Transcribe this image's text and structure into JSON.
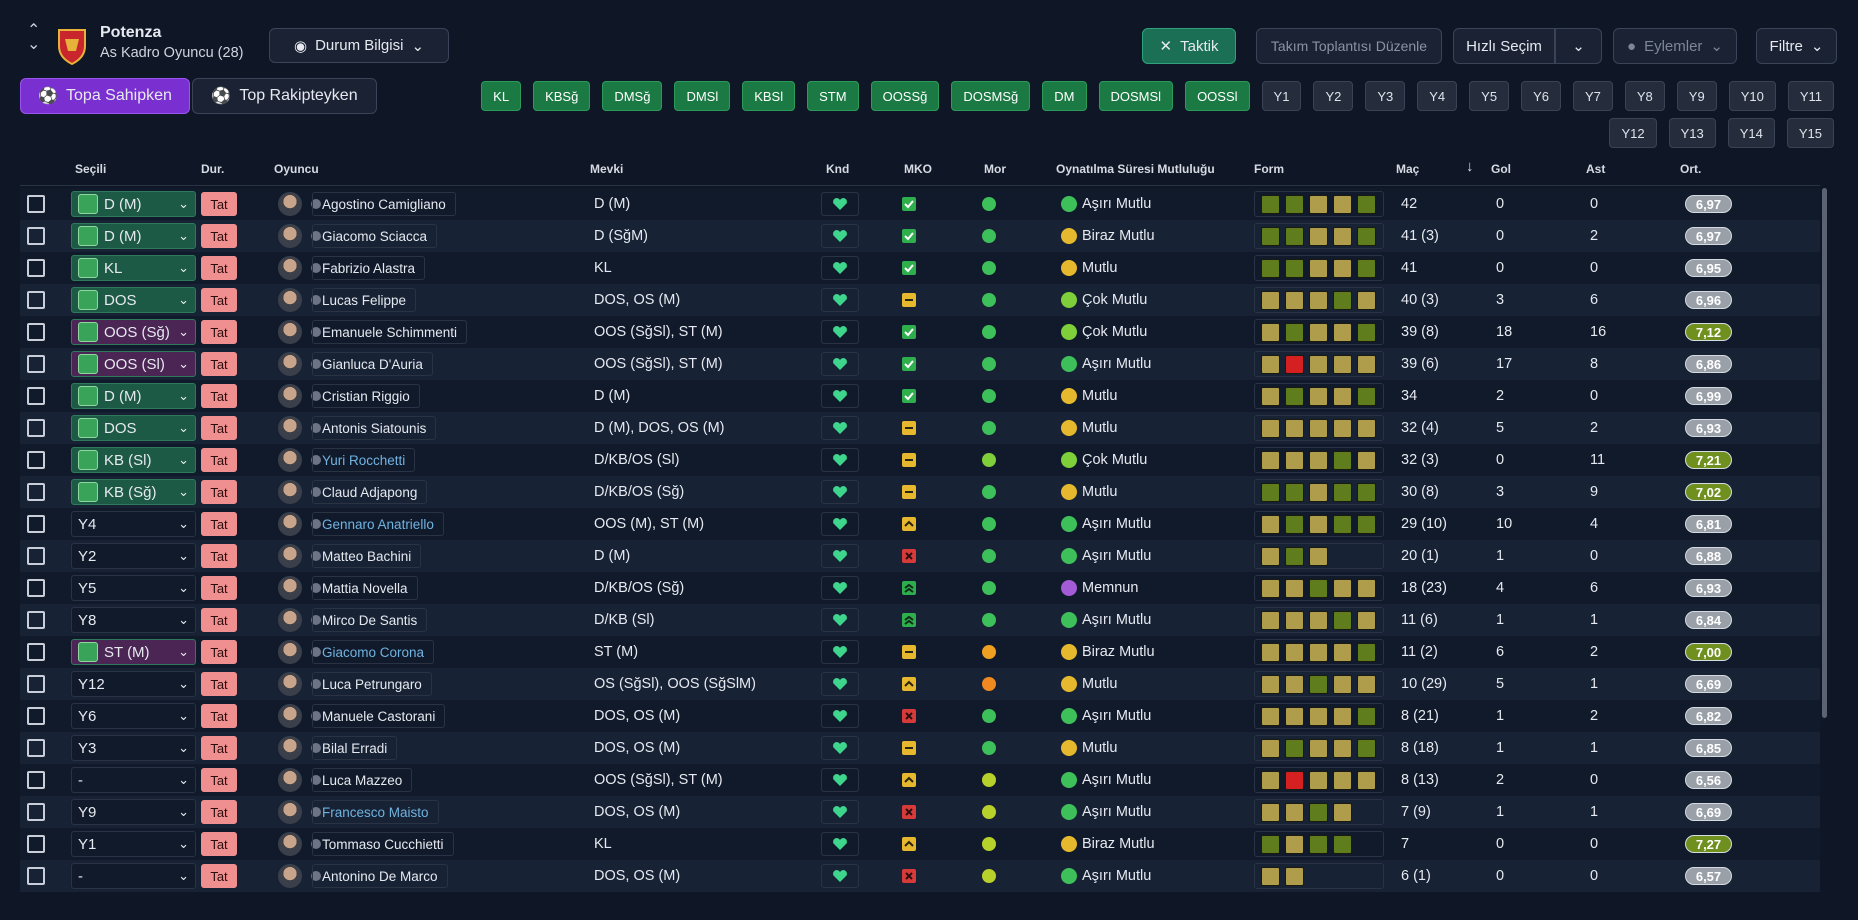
{
  "header": {
    "team": "Potenza",
    "subtitle": "As Kadro Oyuncu (28)",
    "status_button": "Durum Bilgisi",
    "buttons": [
      "Taktik",
      "Takım Toplantısı Düzenle",
      "Hızlı Seçim",
      "Eylemler",
      "Filtre"
    ]
  },
  "tabs": [
    "Topa Sahipken",
    "Top Rakipteyken"
  ],
  "chips": {
    "positions": [
      "KL",
      "KBSğ",
      "DMSğ",
      "DMSl",
      "KBSl",
      "STM",
      "OOSSğ",
      "DOSMSğ",
      "DM",
      "DOSMSl",
      "OOSSl"
    ],
    "slots": [
      "Y1",
      "Y2",
      "Y3",
      "Y4",
      "Y5",
      "Y6",
      "Y7",
      "Y8",
      "Y9",
      "Y10",
      "Y11",
      "Y12",
      "Y13",
      "Y14",
      "Y15"
    ]
  },
  "columns": [
    "Seçili",
    "Dur.",
    "Oyuncu",
    "Mevki",
    "Knd",
    "MKO",
    "Mor",
    "Oynatılma Süresi Mutluluğu",
    "Form",
    "Maç",
    "Gol",
    "Ast",
    "Ort."
  ],
  "rows": [
    {
      "sel": "D (M)",
      "sel_color": "#1d5a45",
      "status": "Tat",
      "name": "Agostino Camigliano",
      "pos": "D (M)",
      "mko": "check",
      "mor": "#3dbf5a",
      "mood": "Aşırı Mutlu",
      "mood_color": "#3dbf5a",
      "form": [
        "#5f7d1c",
        "#5f7d1c",
        "#b09d4c",
        "#b09d4c",
        "#5f7d1c"
      ],
      "apps": "42",
      "goals": 0,
      "assists": 0,
      "rating": "6,97",
      "rating_color": "#9aa0a8"
    },
    {
      "sel": "D (M)",
      "sel_color": "#1d5a45",
      "status": "Tat",
      "name": "Giacomo Sciacca",
      "pos": "D (SğM)",
      "mko": "check",
      "mor": "#3dbf5a",
      "mood": "Biraz Mutlu",
      "mood_color": "#e6b82e",
      "form": [
        "#5f7d1c",
        "#5f7d1c",
        "#b09d4c",
        "#b09d4c",
        "#5f7d1c"
      ],
      "apps": "41 (3)",
      "goals": 0,
      "assists": 2,
      "rating": "6,97",
      "rating_color": "#9aa0a8"
    },
    {
      "sel": "KL",
      "sel_color": "#1d5a45",
      "status": "Tat",
      "name": "Fabrizio Alastra",
      "pos": "KL",
      "mko": "check",
      "mor": "#3dbf5a",
      "mood": "Mutlu",
      "mood_color": "#e6b82e",
      "form": [
        "#5f7d1c",
        "#5f7d1c",
        "#b09d4c",
        "#b09d4c",
        "#5f7d1c"
      ],
      "apps": "41",
      "goals": 0,
      "assists": 0,
      "rating": "6,95",
      "rating_color": "#9aa0a8"
    },
    {
      "sel": "DOS",
      "sel_color": "#1d5a45",
      "status": "Tat",
      "name": "Lucas Felippe",
      "pos": "DOS, OS (M)",
      "mko": "dash",
      "mor": "#3dbf5a",
      "mood": "Çok Mutlu",
      "mood_color": "#7fcf3a",
      "form": [
        "#b09d4c",
        "#b09d4c",
        "#b09d4c",
        "#5f7d1c",
        "#b09d4c"
      ],
      "apps": "40 (3)",
      "goals": 3,
      "assists": 6,
      "rating": "6,96",
      "rating_color": "#9aa0a8"
    },
    {
      "sel": "OOS (Sğ)",
      "sel_color": "#4b2553",
      "status": "Tat",
      "name": "Emanuele Schimmenti",
      "pos": "OOS (SğSl), ST (M)",
      "mko": "check",
      "mor": "#3dbf5a",
      "mood": "Çok Mutlu",
      "mood_color": "#7fcf3a",
      "form": [
        "#b09d4c",
        "#5f7d1c",
        "#b09d4c",
        "#b09d4c",
        "#5f7d1c"
      ],
      "apps": "39 (8)",
      "goals": 18,
      "assists": 16,
      "rating": "7,12",
      "rating_color": "#6f8f1e"
    },
    {
      "sel": "OOS (Sl)",
      "sel_color": "#4b2553",
      "status": "Tat",
      "name": "Gianluca D'Auria",
      "pos": "OOS (SğSl), ST (M)",
      "mko": "check",
      "mor": "#3dbf5a",
      "mood": "Aşırı Mutlu",
      "mood_color": "#3dbf5a",
      "form": [
        "#b09d4c",
        "#d42020",
        "#b09d4c",
        "#b09d4c",
        "#b09d4c"
      ],
      "apps": "39 (6)",
      "goals": 17,
      "assists": 8,
      "rating": "6,86",
      "rating_color": "#9aa0a8"
    },
    {
      "sel": "D (M)",
      "sel_color": "#1d5a45",
      "status": "Tat",
      "name": "Cristian Riggio",
      "pos": "D (M)",
      "mko": "check",
      "mor": "#3dbf5a",
      "mood": "Mutlu",
      "mood_color": "#e6b82e",
      "form": [
        "#b09d4c",
        "#5f7d1c",
        "#b09d4c",
        "#b09d4c",
        "#5f7d1c"
      ],
      "apps": "34",
      "goals": 2,
      "assists": 0,
      "rating": "6,99",
      "rating_color": "#9aa0a8"
    },
    {
      "sel": "DOS",
      "sel_color": "#1d5a45",
      "status": "Tat",
      "name": "Antonis Siatounis",
      "pos": "D (M), DOS, OS (M)",
      "mko": "dash",
      "mor": "#3dbf5a",
      "mood": "Mutlu",
      "mood_color": "#e6b82e",
      "form": [
        "#b09d4c",
        "#b09d4c",
        "#b09d4c",
        "#b09d4c",
        "#b09d4c"
      ],
      "apps": "32 (4)",
      "goals": 5,
      "assists": 2,
      "rating": "6,93",
      "rating_color": "#9aa0a8"
    },
    {
      "sel": "KB (Sl)",
      "sel_color": "#1d5a45",
      "status": "Tat",
      "name": "Yuri Rocchetti",
      "name_color": "#6fb3e0",
      "pos": "D/KB/OS (Sl)",
      "mko": "dash",
      "mor": "#7fcf3a",
      "mood": "Çok Mutlu",
      "mood_color": "#7fcf3a",
      "form": [
        "#b09d4c",
        "#b09d4c",
        "#b09d4c",
        "#5f7d1c",
        "#b09d4c"
      ],
      "apps": "32 (3)",
      "goals": 0,
      "assists": 11,
      "rating": "7,21",
      "rating_color": "#6f8f1e"
    },
    {
      "sel": "KB (Sğ)",
      "sel_color": "#1d5a45",
      "status": "Tat",
      "name": "Claud Adjapong",
      "pos": "D/KB/OS (Sğ)",
      "mko": "dash",
      "mor": "#3dbf5a",
      "mood": "Mutlu",
      "mood_color": "#e6b82e",
      "form": [
        "#5f7d1c",
        "#5f7d1c",
        "#b09d4c",
        "#5f7d1c",
        "#5f7d1c"
      ],
      "apps": "30 (8)",
      "goals": 3,
      "assists": 9,
      "rating": "7,02",
      "rating_color": "#6f8f1e"
    },
    {
      "sel": "Y4",
      "status": "Tat",
      "name": "Gennaro Anatriello",
      "name_color": "#6fb3e0",
      "pos": "OOS (M), ST (M)",
      "mko": "up",
      "mor": "#3dbf5a",
      "mood": "Aşırı Mutlu",
      "mood_color": "#3dbf5a",
      "form": [
        "#b09d4c",
        "#5f7d1c",
        "#b09d4c",
        "#5f7d1c",
        "#5f7d1c"
      ],
      "apps": "29 (10)",
      "goals": 10,
      "assists": 4,
      "rating": "6,81",
      "rating_color": "#9aa0a8"
    },
    {
      "sel": "Y2",
      "status": "Tat",
      "name": "Matteo Bachini",
      "pos": "D (M)",
      "mko": "x",
      "mor": "#3dbf5a",
      "mood": "Aşırı Mutlu",
      "mood_color": "#3dbf5a",
      "form": [
        "#b09d4c",
        "#5f7d1c",
        "#b09d4c"
      ],
      "apps": "20 (1)",
      "goals": 1,
      "assists": 0,
      "rating": "6,88",
      "rating_color": "#9aa0a8"
    },
    {
      "sel": "Y5",
      "status": "Tat",
      "name": "Mattia Novella",
      "pos": "D/KB/OS (Sğ)",
      "mko": "double",
      "mor": "#3dbf5a",
      "mood": "Memnun",
      "mood_color": "#a35bd6",
      "form": [
        "#b09d4c",
        "#b09d4c",
        "#5f7d1c",
        "#b09d4c",
        "#b09d4c"
      ],
      "apps": "18 (23)",
      "goals": 4,
      "assists": 6,
      "rating": "6,93",
      "rating_color": "#9aa0a8"
    },
    {
      "sel": "Y8",
      "status": "Tat",
      "name": "Mirco De Santis",
      "pos": "D/KB (Sl)",
      "mko": "double",
      "mor": "#3dbf5a",
      "mood": "Aşırı Mutlu",
      "mood_color": "#3dbf5a",
      "form": [
        "#b09d4c",
        "#b09d4c",
        "#b09d4c",
        "#5f7d1c",
        "#b09d4c"
      ],
      "apps": "11 (6)",
      "goals": 1,
      "assists": 1,
      "rating": "6,84",
      "rating_color": "#9aa0a8"
    },
    {
      "sel": "ST (M)",
      "sel_color": "#4b2553",
      "status": "Tat",
      "name": "Giacomo Corona",
      "name_color": "#6fb3e0",
      "pos": "ST (M)",
      "mko": "dash",
      "mor": "#f0a020",
      "mood": "Biraz Mutlu",
      "mood_color": "#e6b82e",
      "form": [
        "#b09d4c",
        "#b09d4c",
        "#b09d4c",
        "#b09d4c",
        "#5f7d1c"
      ],
      "apps": "11 (2)",
      "goals": 6,
      "assists": 2,
      "rating": "7,00",
      "rating_color": "#6f8f1e"
    },
    {
      "sel": "Y12",
      "status": "Tat",
      "name": "Luca Petrungaro",
      "pos": "OS (SğSl), OOS (SğSlM)",
      "mko": "up",
      "mor": "#f08a20",
      "mood": "Mutlu",
      "mood_color": "#e6b82e",
      "form": [
        "#b09d4c",
        "#b09d4c",
        "#5f7d1c",
        "#b09d4c",
        "#b09d4c"
      ],
      "apps": "10 (29)",
      "goals": 5,
      "assists": 1,
      "rating": "6,69",
      "rating_color": "#9aa0a8"
    },
    {
      "sel": "Y6",
      "status": "Tat",
      "name": "Manuele Castorani",
      "pos": "DOS, OS (M)",
      "mko": "x",
      "mor": "#3dbf5a",
      "mood": "Aşırı Mutlu",
      "mood_color": "#3dbf5a",
      "form": [
        "#b09d4c",
        "#b09d4c",
        "#b09d4c",
        "#b09d4c",
        "#5f7d1c"
      ],
      "apps": "8 (21)",
      "goals": 1,
      "assists": 2,
      "rating": "6,82",
      "rating_color": "#9aa0a8"
    },
    {
      "sel": "Y3",
      "status": "Tat",
      "name": "Bilal Erradi",
      "pos": "DOS, OS (M)",
      "mko": "dash",
      "mor": "#3dbf5a",
      "mood": "Mutlu",
      "mood_color": "#e6b82e",
      "form": [
        "#b09d4c",
        "#5f7d1c",
        "#b09d4c",
        "#b09d4c",
        "#5f7d1c"
      ],
      "apps": "8 (18)",
      "goals": 1,
      "assists": 1,
      "rating": "6,85",
      "rating_color": "#9aa0a8"
    },
    {
      "sel": "-",
      "status": "Tat",
      "name": "Luca Mazzeo",
      "pos": "OOS (SğSl), ST (M)",
      "mko": "up",
      "mor": "#b8d02a",
      "mood": "Aşırı Mutlu",
      "mood_color": "#3dbf5a",
      "form": [
        "#b09d4c",
        "#d42020",
        "#b09d4c",
        "#b09d4c",
        "#b09d4c"
      ],
      "apps": "8 (13)",
      "goals": 2,
      "assists": 0,
      "rating": "6,56",
      "rating_color": "#9aa0a8"
    },
    {
      "sel": "Y9",
      "status": "Tat",
      "name": "Francesco Maisto",
      "name_color": "#6fb3e0",
      "pos": "DOS, OS (M)",
      "mko": "x",
      "mor": "#b8d02a",
      "mood": "Aşırı Mutlu",
      "mood_color": "#3dbf5a",
      "form": [
        "#b09d4c",
        "#b09d4c",
        "#5f7d1c",
        "#b09d4c"
      ],
      "apps": "7 (9)",
      "goals": 1,
      "assists": 1,
      "rating": "6,69",
      "rating_color": "#9aa0a8"
    },
    {
      "sel": "Y1",
      "status": "Tat",
      "name": "Tommaso Cucchietti",
      "pos": "KL",
      "mko": "up",
      "mor": "#b8d02a",
      "mood": "Biraz Mutlu",
      "mood_color": "#e6b82e",
      "form": [
        "#5f7d1c",
        "#b09d4c",
        "#5f7d1c",
        "#5f7d1c"
      ],
      "apps": "7",
      "goals": 0,
      "assists": 0,
      "rating": "7,27",
      "rating_color": "#6f8f1e"
    },
    {
      "sel": "-",
      "status": "Tat",
      "name": "Antonino De Marco",
      "pos": "DOS, OS (M)",
      "mko": "x",
      "mor": "#b8d02a",
      "mood": "Aşırı Mutlu",
      "mood_color": "#3dbf5a",
      "form": [
        "#b09d4c",
        "#b09d4c"
      ],
      "apps": "6 (1)",
      "goals": 0,
      "assists": 0,
      "rating": "6,57",
      "rating_color": "#9aa0a8"
    }
  ]
}
